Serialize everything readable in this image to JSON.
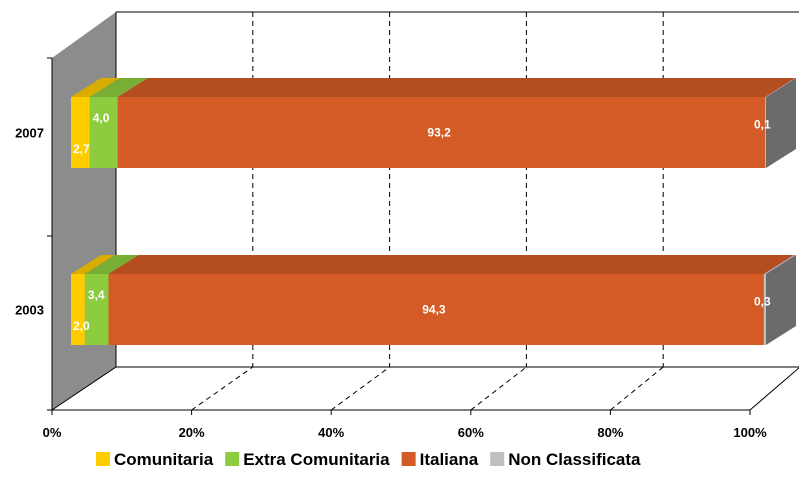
{
  "chart_data": {
    "type": "bar",
    "orientation": "horizontal",
    "stacked": "100%",
    "style": "3d",
    "categories": [
      "2007",
      "2003"
    ],
    "series": [
      {
        "name": "Comunitaria",
        "color": "#FFCC00",
        "values": [
          2.7,
          2.0
        ],
        "labels": [
          "2,7",
          "2,0"
        ]
      },
      {
        "name": "Extra Comunitaria",
        "color": "#8DCB3F",
        "values": [
          4.0,
          3.4
        ],
        "labels": [
          "4,0",
          "3,4"
        ]
      },
      {
        "name": "Italiana",
        "color": "#D45A26",
        "values": [
          93.2,
          94.3
        ],
        "labels": [
          "93,2",
          "94,3"
        ]
      },
      {
        "name": "Non Classificata",
        "color": "#C0C0C0",
        "values": [
          0.1,
          0.3
        ],
        "labels": [
          "0,1",
          "0,3"
        ]
      }
    ],
    "x_ticks": [
      "0%",
      "20%",
      "40%",
      "60%",
      "80%",
      "100%"
    ],
    "xlim": [
      0,
      100
    ],
    "grid": "vertical dashed",
    "legend_position": "bottom"
  }
}
